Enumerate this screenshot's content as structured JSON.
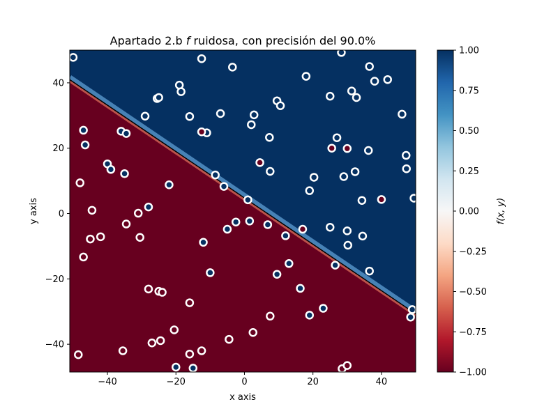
{
  "chart_data": {
    "type": "scatter",
    "title": "Apartado 2.b f ruidosa, con precisión del 90.0%",
    "title_parts": {
      "prefix": "Apartado 2.b ",
      "italic": "f",
      "suffix": " ruidosa, con precisión del 90.0%"
    },
    "xlabel": "x axis",
    "ylabel": "y axis",
    "xlim": [
      -51,
      50
    ],
    "ylim": [
      -48.5,
      50
    ],
    "xticks": [
      -40,
      -20,
      0,
      20,
      40
    ],
    "yticks": [
      -40,
      -20,
      0,
      20,
      40
    ],
    "xtick_labels": [
      "−40",
      "−20",
      "0",
      "20",
      "40"
    ],
    "ytick_labels": [
      "−40",
      "−20",
      "0",
      "20",
      "40"
    ],
    "grid": false,
    "background_contour": {
      "function": "f(x,y) = y − 0.7095·x − 4.78",
      "boundary_line": {
        "slope": -0.7095,
        "intercept": 4.78
      },
      "positive_color": "#053061",
      "negative_color": "#67001f",
      "boundary_color": "#000000"
    },
    "colorbar": {
      "label": "f(x, y)",
      "range": [
        -1,
        1
      ],
      "ticks": [
        1.0,
        0.75,
        0.5,
        0.25,
        0.0,
        -0.25,
        -0.5,
        -0.75,
        -1.0
      ],
      "tick_labels": [
        "1.00",
        "0.75",
        "0.50",
        "0.25",
        "0.00",
        "−0.25",
        "−0.50",
        "−0.75",
        "−1.00"
      ],
      "colormap": "RdBu",
      "stops": [
        "#67001f",
        "#b2182b",
        "#d6604d",
        "#f4a582",
        "#fddbc7",
        "#f7f7f7",
        "#d1e5f0",
        "#92c5de",
        "#4393c3",
        "#2166ac",
        "#053061"
      ]
    },
    "series": [
      {
        "label": 1,
        "color": "#053061",
        "points": [
          [
            -50,
            47.8
          ],
          [
            -47,
            25.5
          ],
          [
            -46.5,
            21
          ],
          [
            -40,
            15.2
          ],
          [
            -39,
            13.5
          ],
          [
            -36,
            25.2
          ],
          [
            -34.5,
            24.5
          ],
          [
            -35,
            12.2
          ],
          [
            -29,
            29.8
          ],
          [
            -25.5,
            35.2
          ],
          [
            -25,
            35.5
          ],
          [
            -19,
            39.3
          ],
          [
            -18.5,
            37.3
          ],
          [
            -16,
            29.7
          ],
          [
            -12.5,
            47.4
          ],
          [
            -11,
            24.7
          ],
          [
            -22,
            8.8
          ],
          [
            -8.5,
            11.8
          ],
          [
            -7,
            30.6
          ],
          [
            -6,
            8.3
          ],
          [
            -3.5,
            44.8
          ],
          [
            2,
            27.2
          ],
          [
            2.8,
            30.2
          ],
          [
            1,
            4.2
          ],
          [
            -5,
            -4.8
          ],
          [
            -2.5,
            -2.6
          ],
          [
            1.5,
            -2.3
          ],
          [
            7.3,
            23.3
          ],
          [
            7.5,
            12.9
          ],
          [
            9.5,
            34.5
          ],
          [
            10.5,
            33.0
          ],
          [
            6.8,
            -3.4
          ],
          [
            12,
            -6.8
          ],
          [
            13,
            -15.3
          ],
          [
            9.5,
            -18.6
          ],
          [
            16.3,
            -22.9
          ],
          [
            18,
            42.0
          ],
          [
            19,
            7.0
          ],
          [
            20.3,
            11.1
          ],
          [
            19,
            -31.1
          ],
          [
            23,
            -29.0
          ],
          [
            25,
            35.9
          ],
          [
            25,
            -4.2
          ],
          [
            26.5,
            -15.8
          ],
          [
            27,
            23.2
          ],
          [
            28.3,
            49.3
          ],
          [
            29,
            11.3
          ],
          [
            30,
            -5.3
          ],
          [
            30.2,
            -9.7
          ],
          [
            31.3,
            37.5
          ],
          [
            32.3,
            12.8
          ],
          [
            32.7,
            35.5
          ],
          [
            34.3,
            4.0
          ],
          [
            34.5,
            -6.9
          ],
          [
            36.2,
            19.3
          ],
          [
            36.5,
            45.0
          ],
          [
            36.5,
            -17.6
          ],
          [
            38,
            40.5
          ],
          [
            41.8,
            41.0
          ],
          [
            46,
            30.4
          ],
          [
            47.2,
            17.8
          ],
          [
            47.3,
            13.7
          ],
          [
            48.5,
            -31.7
          ],
          [
            49,
            -29.4
          ],
          [
            49.5,
            4.7
          ],
          [
            -12,
            -8.8
          ],
          [
            -10,
            -18.1
          ],
          [
            -20,
            -47
          ],
          [
            -15,
            -47.3
          ]
        ]
      },
      {
        "label": -1,
        "color": "#67001f",
        "points": [
          [
            -48,
            9.4
          ],
          [
            -44.5,
            1.0
          ],
          [
            -47,
            -13.3
          ],
          [
            -45,
            -7.8
          ],
          [
            -42,
            -7.1
          ],
          [
            -34.5,
            -3.2
          ],
          [
            -31,
            0.1
          ],
          [
            -30.5,
            -7.3
          ],
          [
            -28,
            -23.1
          ],
          [
            -25,
            -23.8
          ],
          [
            -24,
            -24.1
          ],
          [
            -27,
            -39.6
          ],
          [
            -24.5,
            -38.9
          ],
          [
            -20.5,
            -35.6
          ],
          [
            -16,
            -27.3
          ],
          [
            -16,
            -43.0
          ],
          [
            -12.5,
            -42.0
          ],
          [
            -35.5,
            -42.0
          ],
          [
            -48.5,
            -43.2
          ],
          [
            -4.5,
            -38.5
          ],
          [
            2.5,
            -36.4
          ],
          [
            7.5,
            -31.4
          ],
          [
            28.5,
            -47.5
          ],
          [
            30,
            -46.5
          ]
        ]
      },
      {
        "label": 1,
        "note": "noisy",
        "color": "#053061",
        "points": [
          [
            -28,
            2.0
          ]
        ]
      },
      {
        "label": -1,
        "note": "noisy",
        "color": "#67001f",
        "points": [
          [
            -12.5,
            25.0
          ],
          [
            4.5,
            15.6
          ],
          [
            25.5,
            20.0
          ],
          [
            30,
            19.9
          ],
          [
            40,
            4.3
          ],
          [
            17,
            -4.8
          ]
        ]
      }
    ]
  }
}
